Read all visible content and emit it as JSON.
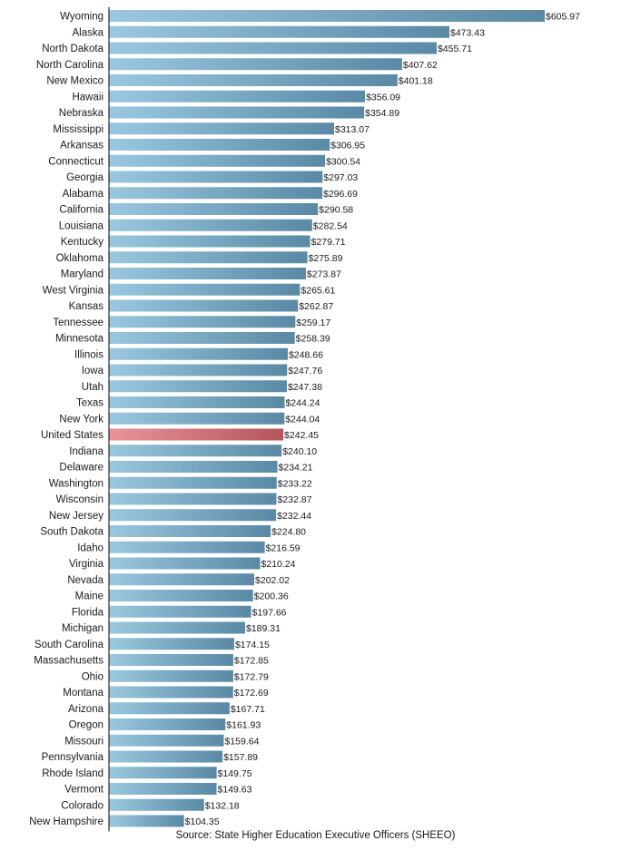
{
  "source_note": "Source: State Higher Education Executive Officers (SHEEO)",
  "colors": {
    "bar_light": "#9ac8e0",
    "bar_dark": "#5a89a5",
    "highlight_light": "#ea9499",
    "highlight_dark": "#b4555c",
    "axis": "#000000"
  },
  "chart_data": {
    "type": "bar",
    "orientation": "horizontal",
    "title": "",
    "xlabel": "",
    "ylabel": "",
    "xlim": [
      0,
      605.97
    ],
    "grid": false,
    "legend": "none",
    "highlight": "United States",
    "categories": [
      "Wyoming",
      "Alaska",
      "North Dakota",
      "North Carolina",
      "New Mexico",
      "Hawaii",
      "Nebraska",
      "Mississippi",
      "Arkansas",
      "Connecticut",
      "Georgia",
      "Alabama",
      "California",
      "Louisiana",
      "Kentucky",
      "Oklahoma",
      "Maryland",
      "West Virginia",
      "Kansas",
      "Tennessee",
      "Minnesota",
      "Illinois",
      "Iowa",
      "Utah",
      "Texas",
      "New York",
      "United States",
      "Indiana",
      "Delaware",
      "Washington",
      "Wisconsin",
      "New Jersey",
      "South Dakota",
      "Idaho",
      "Virginia",
      "Nevada",
      "Maine",
      "Florida",
      "Michigan",
      "South Carolina",
      "Massachusetts",
      "Ohio",
      "Montana",
      "Arizona",
      "Oregon",
      "Missouri",
      "Pennsylvania",
      "Rhode Island",
      "Vermont",
      "Colorado",
      "New Hampshire"
    ],
    "values": [
      605.97,
      473.43,
      455.71,
      407.62,
      401.18,
      356.09,
      354.89,
      313.07,
      306.95,
      300.54,
      297.03,
      296.69,
      290.58,
      282.54,
      279.71,
      275.89,
      273.87,
      265.61,
      262.87,
      259.17,
      258.39,
      248.66,
      247.76,
      247.38,
      244.24,
      244.04,
      242.45,
      240.1,
      234.21,
      233.22,
      232.87,
      232.44,
      224.8,
      216.59,
      210.24,
      202.02,
      200.36,
      197.66,
      189.31,
      174.15,
      172.85,
      172.79,
      172.69,
      167.71,
      161.93,
      159.64,
      157.89,
      149.75,
      149.63,
      132.18,
      104.35
    ],
    "value_labels": [
      "$605.97",
      "$473.43",
      "$455.71",
      "$407.62",
      "$401.18",
      "$356.09",
      "$354.89",
      "$313.07",
      "$306.95",
      "$300.54",
      "$297.03",
      "$296.69",
      "$290.58",
      "$282.54",
      "$279.71",
      "$275.89",
      "$273.87",
      "$265.61",
      "$262.87",
      "$259.17",
      "$258.39",
      "$248.66",
      "$247.76",
      "$247.38",
      "$244.24",
      "$244.04",
      "$242.45",
      "$240.10",
      "$234.21",
      "$233.22",
      "$232.87",
      "$232.44",
      "$224.80",
      "$216.59",
      "$210.24",
      "$202.02",
      "$200.36",
      "$197.66",
      "$189.31",
      "$174.15",
      "$172.85",
      "$172.79",
      "$172.69",
      "$167.71",
      "$161.93",
      "$159.64",
      "$157.89",
      "$149.75",
      "$149.63",
      "$132.18",
      "$104.35"
    ]
  }
}
